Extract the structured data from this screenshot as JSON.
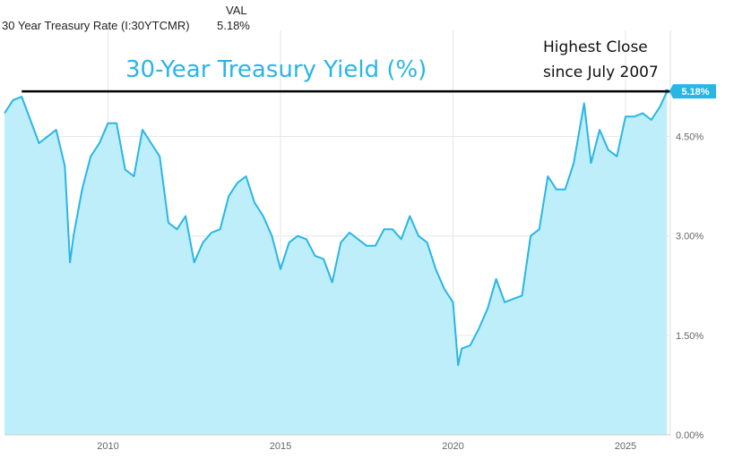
{
  "legend": {
    "header": "VAL",
    "series_name": "30 Year Treasury Rate (I:30YTCMR)",
    "value": "5.18%"
  },
  "annotation_title": "30-Year Treasury Yield (%)",
  "annotation_note": [
    "Highest Close",
    "since July 2007"
  ],
  "colors": {
    "line": "#29b6e6",
    "fill": "#bdeef9",
    "reference_line": "#000000",
    "badge": "#29b6e6",
    "grid": "#e6e6e6"
  },
  "chart_data": {
    "type": "area",
    "series": [
      {
        "name": "30 Year Treasury Rate (I:30YTCMR)",
        "x": [
          2007.0,
          2007.25,
          2007.5,
          2007.75,
          2008.0,
          2008.25,
          2008.5,
          2008.75,
          2008.9,
          2009.0,
          2009.25,
          2009.5,
          2009.75,
          2010.0,
          2010.25,
          2010.5,
          2010.75,
          2011.0,
          2011.25,
          2011.5,
          2011.75,
          2012.0,
          2012.25,
          2012.5,
          2012.75,
          2013.0,
          2013.25,
          2013.5,
          2013.75,
          2014.0,
          2014.25,
          2014.5,
          2014.75,
          2015.0,
          2015.25,
          2015.5,
          2015.75,
          2016.0,
          2016.25,
          2016.5,
          2016.75,
          2017.0,
          2017.25,
          2017.5,
          2017.75,
          2018.0,
          2018.25,
          2018.5,
          2018.75,
          2019.0,
          2019.25,
          2019.5,
          2019.75,
          2020.0,
          2020.15,
          2020.25,
          2020.5,
          2020.75,
          2021.0,
          2021.25,
          2021.5,
          2021.75,
          2022.0,
          2022.25,
          2022.5,
          2022.75,
          2023.0,
          2023.25,
          2023.5,
          2023.8,
          2024.0,
          2024.25,
          2024.5,
          2024.75,
          2025.0,
          2025.25,
          2025.5,
          2025.75,
          2026.0,
          2026.2
        ],
        "values": [
          4.85,
          5.05,
          5.1,
          4.75,
          4.4,
          4.5,
          4.6,
          4.05,
          2.6,
          3.0,
          3.7,
          4.2,
          4.4,
          4.7,
          4.7,
          4.0,
          3.9,
          4.6,
          4.4,
          4.2,
          3.2,
          3.1,
          3.3,
          2.6,
          2.9,
          3.05,
          3.1,
          3.6,
          3.8,
          3.9,
          3.5,
          3.3,
          3.0,
          2.5,
          2.9,
          3.0,
          2.95,
          2.7,
          2.65,
          2.3,
          2.9,
          3.05,
          2.95,
          2.85,
          2.85,
          3.1,
          3.1,
          2.95,
          3.3,
          3.0,
          2.9,
          2.5,
          2.2,
          2.0,
          1.05,
          1.3,
          1.35,
          1.6,
          1.9,
          2.35,
          2.0,
          2.05,
          2.1,
          3.0,
          3.1,
          3.9,
          3.7,
          3.7,
          4.1,
          5.0,
          4.1,
          4.6,
          4.3,
          4.2,
          4.8,
          4.8,
          4.85,
          4.75,
          4.95,
          5.18
        ]
      }
    ],
    "x_ticks": [
      2010,
      2015,
      2020,
      2025
    ],
    "x_tick_labels": [
      "2010",
      "2015",
      "2020",
      "2025"
    ],
    "y_ticks": [
      0,
      1.5,
      3,
      4.5
    ],
    "y_tick_labels": [
      "0.00%",
      "1.50%",
      "3.00%",
      "4.50%"
    ],
    "xlim": [
      2007.0,
      2026.3
    ],
    "ylim": [
      0,
      6.1
    ],
    "reference_line": 5.18,
    "last_value_label": "5.18%",
    "grid": true,
    "legend_position": "top-left"
  }
}
